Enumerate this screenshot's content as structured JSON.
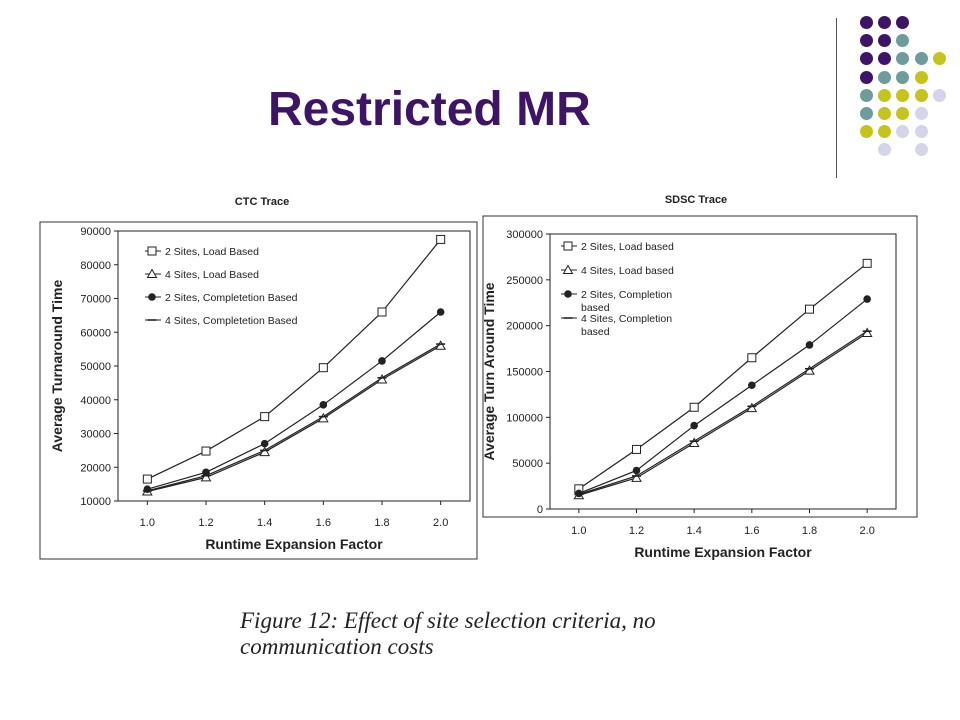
{
  "slide": {
    "title": "Restricted MR",
    "caption": "Figure 12: Effect of site selection criteria, no communication costs"
  },
  "decor": {
    "colors": {
      "purple": "#3d1466",
      "teal": "#6e9c9c",
      "olive": "#c4c41d",
      "lavender": "#d5d5ea"
    },
    "dot_grid": [
      [
        "purple",
        "purple",
        "purple",
        "",
        ""
      ],
      [
        "purple",
        "purple",
        "teal",
        "",
        ""
      ],
      [
        "purple",
        "purple",
        "teal",
        "teal",
        "olive"
      ],
      [
        "purple",
        "teal",
        "teal",
        "olive",
        ""
      ],
      [
        "teal",
        "olive",
        "olive",
        "olive",
        "lavender"
      ],
      [
        "teal",
        "olive",
        "olive",
        "lavender",
        ""
      ],
      [
        "olive",
        "olive",
        "lavender",
        "lavender",
        ""
      ],
      [
        "",
        "lavender",
        "",
        "lavender",
        ""
      ]
    ]
  },
  "chart_data": [
    {
      "type": "line",
      "title": "CTC Trace",
      "xlabel": "Runtime Expansion Factor",
      "ylabel": "Average Turnaround Time",
      "x": [
        1.0,
        1.2,
        1.4,
        1.6,
        1.8,
        2.0
      ],
      "x_ticks": [
        "1.0",
        "1.2",
        "1.4",
        "1.6",
        "1.8",
        "2.0"
      ],
      "ylim": [
        10000,
        90000
      ],
      "y_ticks": [
        "10000",
        "20000",
        "30000",
        "40000",
        "50000",
        "60000",
        "70000",
        "80000",
        "90000"
      ],
      "legend_position": "top-left",
      "series": [
        {
          "name": "2 Sites, Load Based",
          "marker": "square",
          "values": [
            16500,
            24800,
            35000,
            49500,
            66000,
            87500
          ]
        },
        {
          "name": "4 Sites, Load Based",
          "marker": "triangle",
          "values": [
            12800,
            17000,
            24500,
            34500,
            46000,
            56000
          ]
        },
        {
          "name": "2 Sites, Completetion Based",
          "marker": "circle",
          "values": [
            13500,
            18500,
            27000,
            38500,
            51500,
            66000
          ]
        },
        {
          "name": "4 Sites, Completetion Based",
          "marker": "dash",
          "values": [
            13000,
            17500,
            25000,
            35000,
            46500,
            56500
          ]
        }
      ]
    },
    {
      "type": "line",
      "title": "SDSC Trace",
      "xlabel": "Runtime Expansion Factor",
      "ylabel": "Average Turn Around Time",
      "x": [
        1.0,
        1.2,
        1.4,
        1.6,
        1.8,
        2.0
      ],
      "x_ticks": [
        "1.0",
        "1.2",
        "1.4",
        "1.6",
        "1.8",
        "2.0"
      ],
      "ylim": [
        0,
        300000
      ],
      "y_ticks": [
        "0",
        "50000",
        "100000",
        "150000",
        "200000",
        "250000",
        "300000"
      ],
      "legend_position": "top-left",
      "series": [
        {
          "name": "2 Sites, Load based",
          "marker": "square",
          "values": [
            22000,
            65000,
            111000,
            165000,
            218000,
            268000
          ]
        },
        {
          "name": "4 Sites, Load based",
          "marker": "triangle",
          "values": [
            15000,
            34000,
            72000,
            110000,
            151000,
            192000
          ]
        },
        {
          "name": "2 Sites, Completion based",
          "marker": "circle",
          "values": [
            17000,
            42000,
            91000,
            135000,
            179000,
            229000
          ]
        },
        {
          "name": "4 Sites, Completion based",
          "marker": "dash",
          "values": [
            16000,
            36000,
            74000,
            112000,
            153000,
            194000
          ]
        }
      ]
    }
  ]
}
